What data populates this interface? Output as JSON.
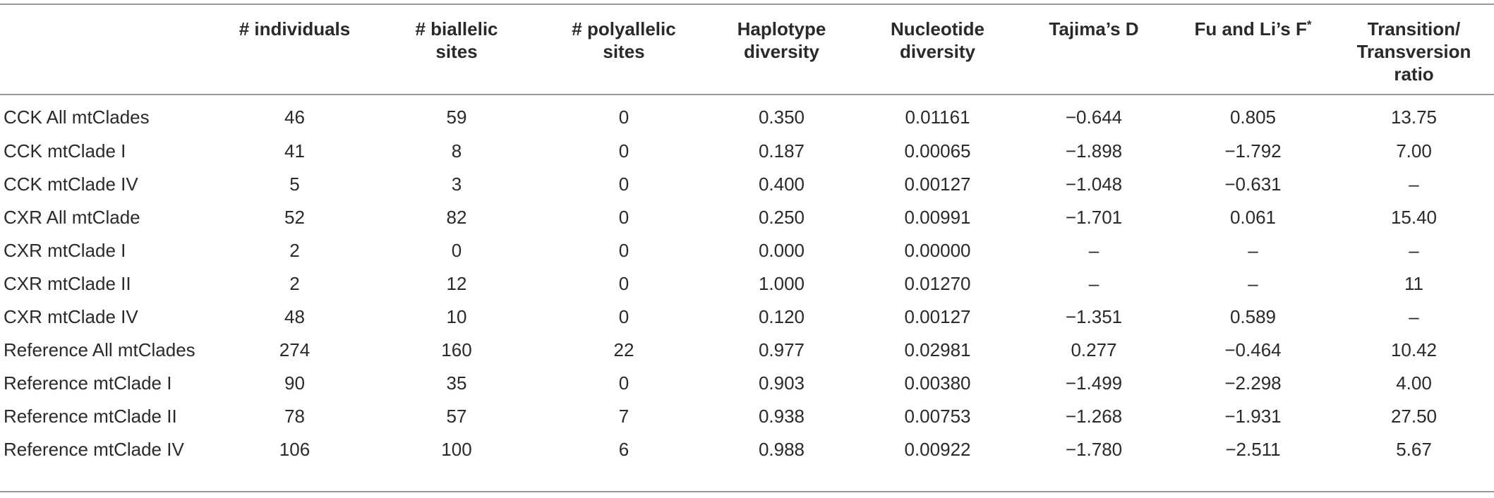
{
  "columns": [
    {
      "key": "label",
      "lines": [
        "",
        ""
      ]
    },
    {
      "key": "individuals",
      "lines": [
        "# individuals",
        ""
      ]
    },
    {
      "key": "biallelic",
      "lines": [
        "# biallelic",
        "sites"
      ]
    },
    {
      "key": "polyallelic",
      "lines": [
        "# polyallelic",
        "sites"
      ]
    },
    {
      "key": "haplotype",
      "lines": [
        "Haplotype",
        "diversity"
      ]
    },
    {
      "key": "nucleotide",
      "lines": [
        "Nucleotide",
        "diversity"
      ]
    },
    {
      "key": "tajima",
      "lines": [
        "Tajima’s D",
        ""
      ]
    },
    {
      "key": "fuli",
      "lines": [
        "Fu and Li’s F",
        ""
      ],
      "sup": "*"
    },
    {
      "key": "tt",
      "lines": [
        "Transition/",
        "Transversion",
        "ratio"
      ]
    }
  ],
  "rows": [
    [
      "CCK All mtClades",
      "46",
      "59",
      "0",
      "0.350",
      "0.01161",
      "−0.644",
      "0.805",
      "13.75"
    ],
    [
      "CCK mtClade I",
      "41",
      "8",
      "0",
      "0.187",
      "0.00065",
      "−1.898",
      "−1.792",
      "7.00"
    ],
    [
      "CCK mtClade IV",
      "5",
      "3",
      "0",
      "0.400",
      "0.00127",
      "−1.048",
      "−0.631",
      "–"
    ],
    [
      "CXR All mtClade",
      "52",
      "82",
      "0",
      "0.250",
      "0.00991",
      "−1.701",
      "0.061",
      "15.40"
    ],
    [
      "CXR mtClade I",
      "2",
      "0",
      "0",
      "0.000",
      "0.00000",
      "–",
      "–",
      "–"
    ],
    [
      "CXR mtClade II",
      "2",
      "12",
      "0",
      "1.000",
      "0.01270",
      "–",
      "–",
      "11"
    ],
    [
      "CXR mtClade IV",
      "48",
      "10",
      "0",
      "0.120",
      "0.00127",
      "−1.351",
      "0.589",
      "–"
    ],
    [
      "Reference All mtClades",
      "274",
      "160",
      "22",
      "0.977",
      "0.02981",
      "0.277",
      "−0.464",
      "10.42"
    ],
    [
      "Reference mtClade I",
      "90",
      "35",
      "0",
      "0.903",
      "0.00380",
      "−1.499",
      "−2.298",
      "4.00"
    ],
    [
      "Reference mtClade II",
      "78",
      "57",
      "7",
      "0.938",
      "0.00753",
      "−1.268",
      "−1.931",
      "27.50"
    ],
    [
      "Reference mtClade IV",
      "106",
      "100",
      "6",
      "0.988",
      "0.00922",
      "−1.780",
      "−2.511",
      "5.67"
    ]
  ]
}
